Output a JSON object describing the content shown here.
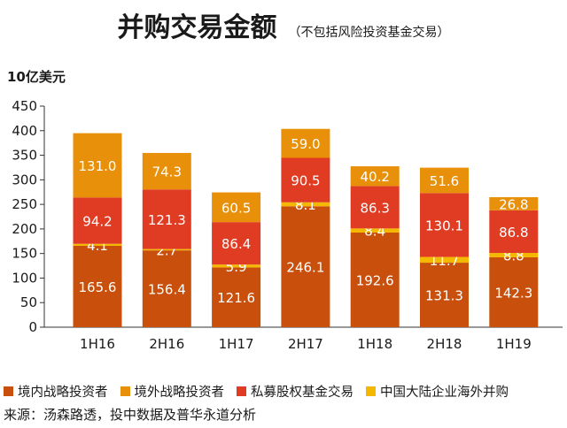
{
  "colors": {
    "domestic": "#c9500c",
    "overseas": "#e8900a",
    "pe": "#e03c23",
    "china_outbound": "#f5b800"
  },
  "header": {
    "title": "并购交易金额",
    "subtitle": "（不包括风险投资基金交易）"
  },
  "footer": {
    "source": "来源：汤森路透，投中数据及普华永道分析"
  },
  "chart_data": {
    "type": "bar",
    "stacked": true,
    "ylabel": "10亿美元",
    "ylim": [
      0,
      450
    ],
    "yticks": [
      0,
      50,
      100,
      150,
      200,
      250,
      300,
      350,
      400,
      450
    ],
    "grid": false,
    "legend_position": "bottom",
    "categories": [
      "1H16",
      "2H16",
      "1H17",
      "2H17",
      "1H18",
      "2H18",
      "1H19"
    ],
    "series": [
      {
        "name": "境内战略投资者",
        "key": "domestic",
        "values": [
          165.6,
          156.4,
          121.6,
          246.1,
          192.6,
          131.3,
          142.3
        ],
        "labels": [
          "165.6",
          "156.4",
          "121.6",
          "246.1",
          "192.6",
          "131.3",
          "142.3"
        ]
      },
      {
        "name": "中国大陆企业海外并购",
        "key": "china_outbound",
        "values": [
          4.1,
          2.7,
          5.9,
          8.1,
          8.4,
          11.7,
          8.8
        ],
        "labels": [
          "4.1",
          "2.7",
          "5.9",
          "8.1",
          "8.4",
          "11.7",
          "8.8"
        ]
      },
      {
        "name": "私募股权基金交易",
        "key": "pe",
        "values": [
          94.2,
          121.3,
          86.4,
          90.5,
          86.3,
          130.1,
          86.8
        ],
        "labels": [
          "94.2",
          "121.3",
          "86.4",
          "90.5",
          "86.3",
          "130.1",
          "86.8"
        ]
      },
      {
        "name": "境外战略投资者",
        "key": "overseas",
        "values": [
          131.0,
          74.3,
          60.5,
          59.0,
          40.2,
          51.6,
          26.8
        ],
        "labels": [
          "131.0",
          "74.3",
          "60.5",
          "59.0",
          "40.2",
          "51.6",
          "26.8"
        ]
      }
    ],
    "legend": [
      {
        "label": "境内战略投资者",
        "key": "domestic"
      },
      {
        "label": "境外战略投资者",
        "key": "overseas"
      },
      {
        "label": "私募股权基金交易",
        "key": "pe"
      },
      {
        "label": "中国大陆企业海外并购",
        "key": "china_outbound"
      }
    ]
  }
}
